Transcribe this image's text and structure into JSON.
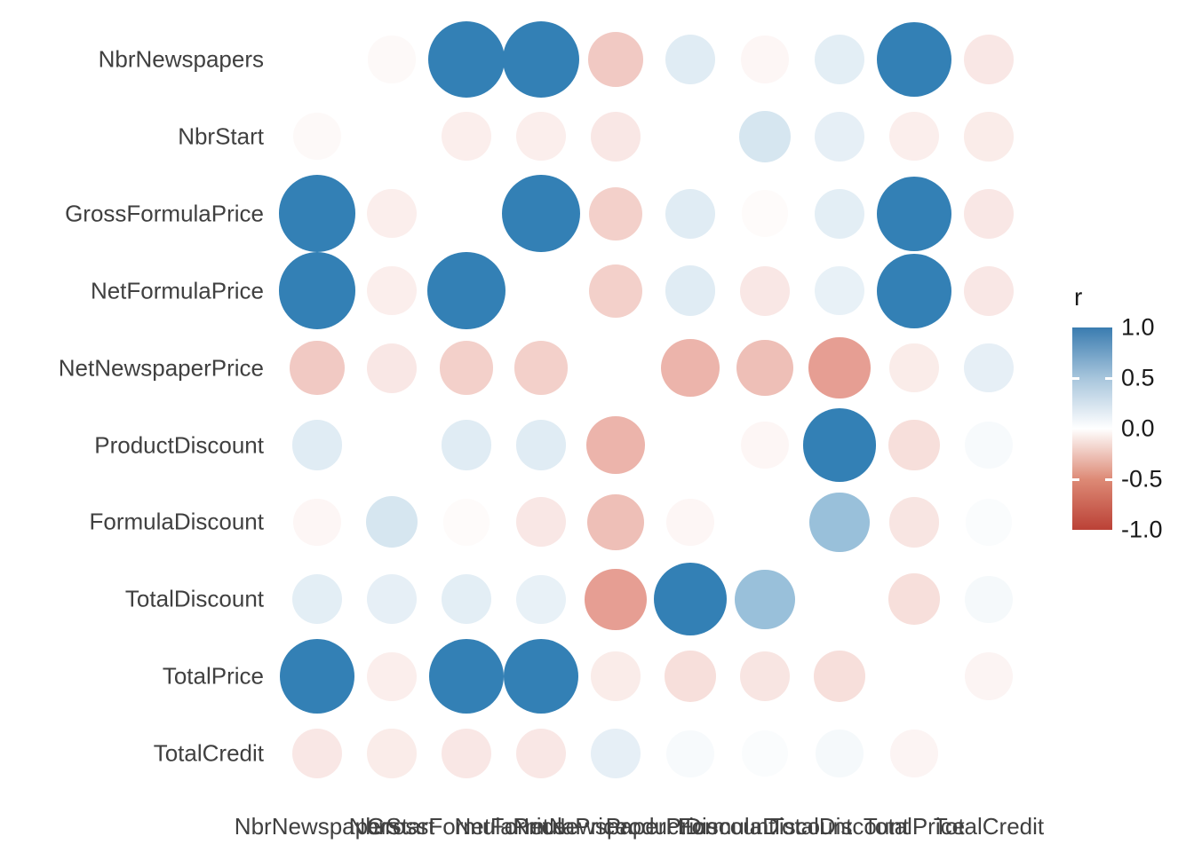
{
  "chart_data": {
    "type": "heatmap",
    "subtype": "correlation-bubble-matrix",
    "title": "",
    "xlabel": "",
    "ylabel": "",
    "encoding": "circle size and color encode Pearson correlation r; diagonal cells blank; NbrStart vs ProductDiscount cell blank",
    "variables": [
      "NbrNewspapers",
      "NbrStart",
      "GrossFormulaPrice",
      "NetFormulaPrice",
      "NetNewspaperPrice",
      "ProductDiscount",
      "FormulaDiscount",
      "TotalDiscount",
      "TotalPrice",
      "TotalCredit"
    ],
    "matrix": [
      [
        null,
        -0.03,
        0.92,
        0.92,
        -0.25,
        0.12,
        -0.04,
        0.11,
        0.85,
        -0.11
      ],
      [
        -0.03,
        null,
        -0.08,
        -0.08,
        -0.11,
        null,
        0.16,
        0.1,
        -0.08,
        -0.09
      ],
      [
        0.92,
        -0.08,
        null,
        0.93,
        -0.22,
        0.12,
        -0.02,
        0.11,
        0.85,
        -0.11
      ],
      [
        0.92,
        -0.08,
        0.93,
        null,
        -0.22,
        0.12,
        -0.11,
        0.09,
        0.85,
        -0.11
      ],
      [
        -0.25,
        -0.11,
        -0.22,
        -0.22,
        null,
        -0.35,
        -0.3,
        -0.45,
        -0.09,
        0.1
      ],
      [
        0.12,
        null,
        0.12,
        0.12,
        -0.35,
        null,
        -0.04,
        0.8,
        -0.15,
        0.03
      ],
      [
        -0.04,
        0.16,
        -0.02,
        -0.11,
        -0.3,
        -0.04,
        null,
        0.4,
        -0.12,
        0.02
      ],
      [
        0.11,
        0.1,
        0.11,
        0.09,
        -0.45,
        0.8,
        0.4,
        null,
        -0.15,
        0.04
      ],
      [
        0.85,
        -0.08,
        0.85,
        0.85,
        -0.09,
        -0.15,
        -0.12,
        -0.15,
        null,
        -0.05
      ],
      [
        -0.11,
        -0.09,
        -0.11,
        -0.11,
        0.1,
        0.03,
        0.02,
        0.04,
        -0.05,
        null
      ]
    ],
    "legend": {
      "title": "r",
      "position": "right",
      "tick_labels": [
        "1.0",
        "0.5",
        "0.0",
        "-0.5",
        "-1.0"
      ],
      "tick_values": [
        1.0,
        0.5,
        0.0,
        -0.5,
        -1.0
      ],
      "range": [
        -1.0,
        1.0
      ]
    },
    "colors": {
      "positive_full": "#3380b5",
      "negative_mid": "#d6604d",
      "legend_top": "#3a7cb0",
      "legend_bottom": "#bb4136",
      "background": "#ffffff",
      "axis_text": "#404040",
      "legend_text": "#1a1a1a"
    },
    "grid": false
  }
}
